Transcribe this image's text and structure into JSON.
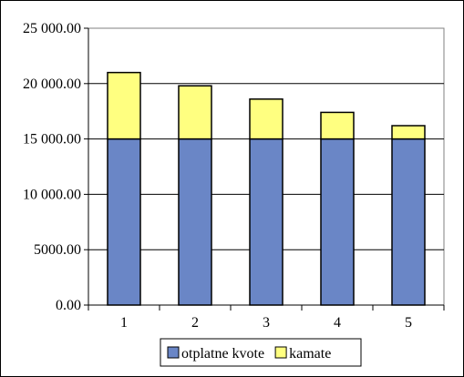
{
  "chart_data": {
    "type": "bar",
    "stacked": true,
    "categories": [
      "1",
      "2",
      "3",
      "4",
      "5"
    ],
    "series": [
      {
        "name": "otplatne kvote",
        "values": [
          15000,
          15000,
          15000,
          15000,
          15000
        ],
        "color": "#6a86c6"
      },
      {
        "name": "kamate",
        "values": [
          6000,
          4800,
          3600,
          2400,
          1200
        ],
        "color": "#ffff80"
      }
    ],
    "ylim": [
      0,
      25000
    ],
    "yticks": [
      0,
      5000,
      10000,
      15000,
      20000,
      25000
    ],
    "ytick_labels": [
      "0.00",
      "5000.00",
      "10 000.00",
      "15 000.00",
      "20 000.00",
      "25 000.00"
    ],
    "grid": true,
    "legend_position": "bottom"
  }
}
